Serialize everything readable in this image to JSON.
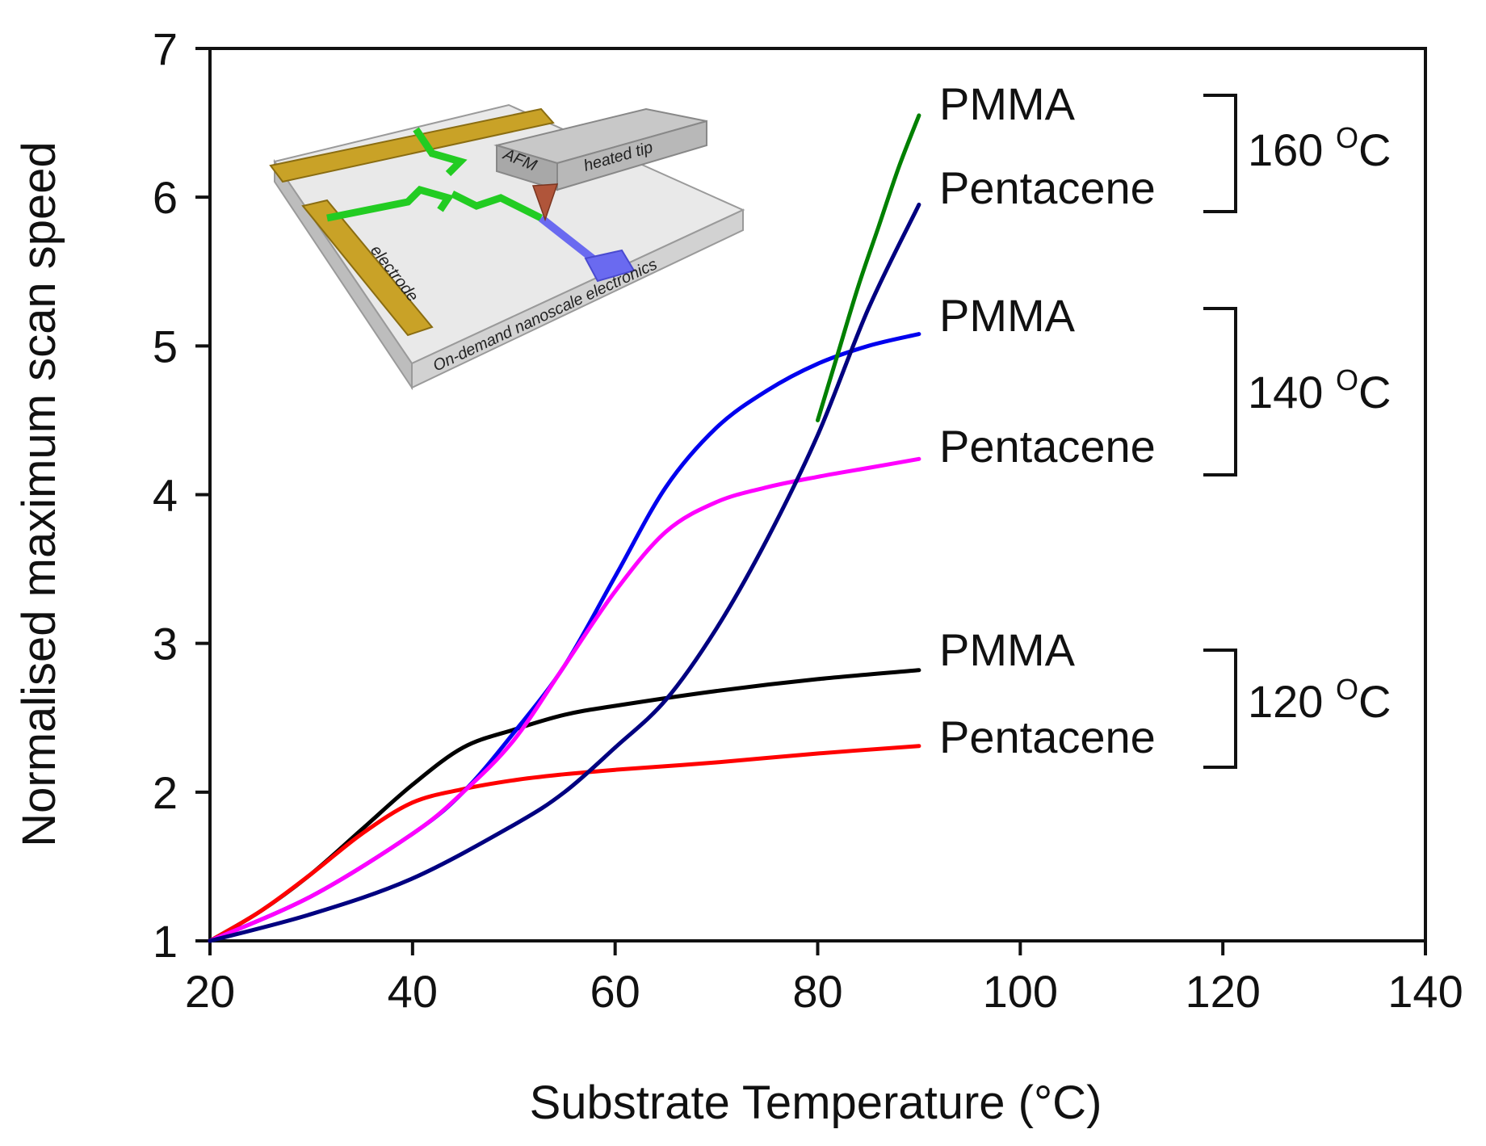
{
  "chart_data": {
    "type": "line",
    "title": "",
    "xlabel": "Substrate Temperature (",
    "xlabel_unit": "°C",
    "xlabel_close": ")",
    "ylabel": "Normalised maximum scan speed",
    "xlim": [
      20,
      140
    ],
    "ylim": [
      1,
      7
    ],
    "xticks": [
      20,
      40,
      60,
      80,
      100,
      120,
      140
    ],
    "yticks": [
      1,
      2,
      3,
      4,
      5,
      6,
      7
    ],
    "grid": false,
    "series": [
      {
        "name": "PMMA",
        "group": "120 °C",
        "color": "#000000",
        "x": [
          20,
          25,
          30,
          35,
          40,
          45,
          50,
          55,
          60,
          70,
          80,
          90
        ],
        "y": [
          1.0,
          1.2,
          1.45,
          1.75,
          2.05,
          2.3,
          2.42,
          2.52,
          2.58,
          2.68,
          2.76,
          2.82
        ]
      },
      {
        "name": "Pentacene",
        "group": "120 °C",
        "color": "#ff0000",
        "x": [
          20,
          25,
          30,
          35,
          40,
          45,
          50,
          55,
          60,
          70,
          80,
          90
        ],
        "y": [
          1.0,
          1.2,
          1.45,
          1.72,
          1.93,
          2.02,
          2.08,
          2.12,
          2.15,
          2.2,
          2.26,
          2.31
        ]
      },
      {
        "name": "PMMA",
        "group": "140 °C",
        "color": "#0000ee",
        "x": [
          20,
          30,
          40,
          45,
          50,
          55,
          60,
          65,
          70,
          75,
          80,
          85,
          90
        ],
        "y": [
          1.0,
          1.3,
          1.72,
          2.0,
          2.4,
          2.85,
          3.45,
          4.05,
          4.45,
          4.7,
          4.88,
          5.0,
          5.08
        ]
      },
      {
        "name": "Pentacene",
        "group": "140 °C",
        "color": "#ff00ff",
        "x": [
          20,
          30,
          40,
          45,
          50,
          55,
          60,
          65,
          70,
          75,
          80,
          85,
          90
        ],
        "y": [
          1.0,
          1.3,
          1.72,
          2.0,
          2.35,
          2.85,
          3.35,
          3.75,
          3.95,
          4.05,
          4.12,
          4.18,
          4.24
        ]
      },
      {
        "name": "PMMA",
        "group": "160 °C",
        "color": "#008000",
        "x": [
          80,
          82,
          84,
          86,
          88,
          90
        ],
        "y": [
          4.5,
          4.95,
          5.4,
          5.8,
          6.2,
          6.55
        ]
      },
      {
        "name": "Pentacene",
        "group": "160 °C",
        "color": "#000080",
        "x": [
          20,
          30,
          40,
          50,
          55,
          60,
          65,
          70,
          75,
          80,
          85,
          90
        ],
        "y": [
          1.0,
          1.18,
          1.42,
          1.78,
          2.0,
          2.3,
          2.62,
          3.1,
          3.7,
          4.4,
          5.25,
          5.95
        ]
      }
    ],
    "groups": [
      {
        "label": "160 °C",
        "temp": "160",
        "unit": "C"
      },
      {
        "label": "140 °C",
        "temp": "140",
        "unit": "C"
      },
      {
        "label": "120 °C",
        "temp": "120",
        "unit": "C"
      }
    ]
  },
  "inset": {
    "afm_label": "AFM",
    "tip_label": "heated tip",
    "electrode_label": "electrode",
    "caption": "On-demand nanoscale electronics"
  },
  "colors": {
    "electrode": "#c8a020",
    "wire": "#22cc22",
    "pad": "#6a6af0",
    "tip": "#b0553a",
    "substrate": "#e8e8e8"
  }
}
